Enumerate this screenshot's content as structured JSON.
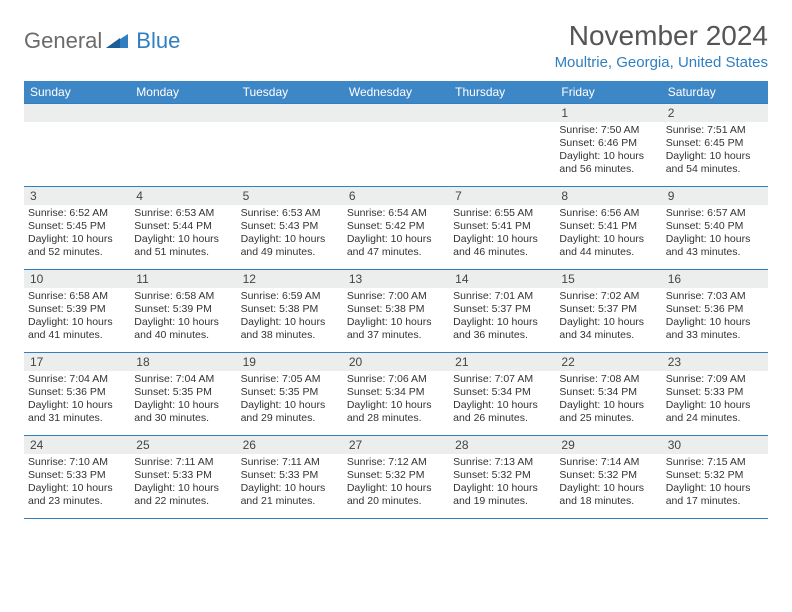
{
  "logo": {
    "general": "General",
    "blue": "Blue"
  },
  "title": "November 2024",
  "location": "Moultrie, Georgia, United States",
  "colors": {
    "header_bg": "#3d87c7",
    "accent": "#2f7fc1",
    "daynum_bg": "#eceded",
    "title_color": "#555555",
    "text": "#333333"
  },
  "day_headers": [
    "Sunday",
    "Monday",
    "Tuesday",
    "Wednesday",
    "Thursday",
    "Friday",
    "Saturday"
  ],
  "weeks": [
    [
      {
        "n": "",
        "sr": "",
        "ss": "",
        "d1": "",
        "d2": ""
      },
      {
        "n": "",
        "sr": "",
        "ss": "",
        "d1": "",
        "d2": ""
      },
      {
        "n": "",
        "sr": "",
        "ss": "",
        "d1": "",
        "d2": ""
      },
      {
        "n": "",
        "sr": "",
        "ss": "",
        "d1": "",
        "d2": ""
      },
      {
        "n": "",
        "sr": "",
        "ss": "",
        "d1": "",
        "d2": ""
      },
      {
        "n": "1",
        "sr": "Sunrise: 7:50 AM",
        "ss": "Sunset: 6:46 PM",
        "d1": "Daylight: 10 hours",
        "d2": "and 56 minutes."
      },
      {
        "n": "2",
        "sr": "Sunrise: 7:51 AM",
        "ss": "Sunset: 6:45 PM",
        "d1": "Daylight: 10 hours",
        "d2": "and 54 minutes."
      }
    ],
    [
      {
        "n": "3",
        "sr": "Sunrise: 6:52 AM",
        "ss": "Sunset: 5:45 PM",
        "d1": "Daylight: 10 hours",
        "d2": "and 52 minutes."
      },
      {
        "n": "4",
        "sr": "Sunrise: 6:53 AM",
        "ss": "Sunset: 5:44 PM",
        "d1": "Daylight: 10 hours",
        "d2": "and 51 minutes."
      },
      {
        "n": "5",
        "sr": "Sunrise: 6:53 AM",
        "ss": "Sunset: 5:43 PM",
        "d1": "Daylight: 10 hours",
        "d2": "and 49 minutes."
      },
      {
        "n": "6",
        "sr": "Sunrise: 6:54 AM",
        "ss": "Sunset: 5:42 PM",
        "d1": "Daylight: 10 hours",
        "d2": "and 47 minutes."
      },
      {
        "n": "7",
        "sr": "Sunrise: 6:55 AM",
        "ss": "Sunset: 5:41 PM",
        "d1": "Daylight: 10 hours",
        "d2": "and 46 minutes."
      },
      {
        "n": "8",
        "sr": "Sunrise: 6:56 AM",
        "ss": "Sunset: 5:41 PM",
        "d1": "Daylight: 10 hours",
        "d2": "and 44 minutes."
      },
      {
        "n": "9",
        "sr": "Sunrise: 6:57 AM",
        "ss": "Sunset: 5:40 PM",
        "d1": "Daylight: 10 hours",
        "d2": "and 43 minutes."
      }
    ],
    [
      {
        "n": "10",
        "sr": "Sunrise: 6:58 AM",
        "ss": "Sunset: 5:39 PM",
        "d1": "Daylight: 10 hours",
        "d2": "and 41 minutes."
      },
      {
        "n": "11",
        "sr": "Sunrise: 6:58 AM",
        "ss": "Sunset: 5:39 PM",
        "d1": "Daylight: 10 hours",
        "d2": "and 40 minutes."
      },
      {
        "n": "12",
        "sr": "Sunrise: 6:59 AM",
        "ss": "Sunset: 5:38 PM",
        "d1": "Daylight: 10 hours",
        "d2": "and 38 minutes."
      },
      {
        "n": "13",
        "sr": "Sunrise: 7:00 AM",
        "ss": "Sunset: 5:38 PM",
        "d1": "Daylight: 10 hours",
        "d2": "and 37 minutes."
      },
      {
        "n": "14",
        "sr": "Sunrise: 7:01 AM",
        "ss": "Sunset: 5:37 PM",
        "d1": "Daylight: 10 hours",
        "d2": "and 36 minutes."
      },
      {
        "n": "15",
        "sr": "Sunrise: 7:02 AM",
        "ss": "Sunset: 5:37 PM",
        "d1": "Daylight: 10 hours",
        "d2": "and 34 minutes."
      },
      {
        "n": "16",
        "sr": "Sunrise: 7:03 AM",
        "ss": "Sunset: 5:36 PM",
        "d1": "Daylight: 10 hours",
        "d2": "and 33 minutes."
      }
    ],
    [
      {
        "n": "17",
        "sr": "Sunrise: 7:04 AM",
        "ss": "Sunset: 5:36 PM",
        "d1": "Daylight: 10 hours",
        "d2": "and 31 minutes."
      },
      {
        "n": "18",
        "sr": "Sunrise: 7:04 AM",
        "ss": "Sunset: 5:35 PM",
        "d1": "Daylight: 10 hours",
        "d2": "and 30 minutes."
      },
      {
        "n": "19",
        "sr": "Sunrise: 7:05 AM",
        "ss": "Sunset: 5:35 PM",
        "d1": "Daylight: 10 hours",
        "d2": "and 29 minutes."
      },
      {
        "n": "20",
        "sr": "Sunrise: 7:06 AM",
        "ss": "Sunset: 5:34 PM",
        "d1": "Daylight: 10 hours",
        "d2": "and 28 minutes."
      },
      {
        "n": "21",
        "sr": "Sunrise: 7:07 AM",
        "ss": "Sunset: 5:34 PM",
        "d1": "Daylight: 10 hours",
        "d2": "and 26 minutes."
      },
      {
        "n": "22",
        "sr": "Sunrise: 7:08 AM",
        "ss": "Sunset: 5:34 PM",
        "d1": "Daylight: 10 hours",
        "d2": "and 25 minutes."
      },
      {
        "n": "23",
        "sr": "Sunrise: 7:09 AM",
        "ss": "Sunset: 5:33 PM",
        "d1": "Daylight: 10 hours",
        "d2": "and 24 minutes."
      }
    ],
    [
      {
        "n": "24",
        "sr": "Sunrise: 7:10 AM",
        "ss": "Sunset: 5:33 PM",
        "d1": "Daylight: 10 hours",
        "d2": "and 23 minutes."
      },
      {
        "n": "25",
        "sr": "Sunrise: 7:11 AM",
        "ss": "Sunset: 5:33 PM",
        "d1": "Daylight: 10 hours",
        "d2": "and 22 minutes."
      },
      {
        "n": "26",
        "sr": "Sunrise: 7:11 AM",
        "ss": "Sunset: 5:33 PM",
        "d1": "Daylight: 10 hours",
        "d2": "and 21 minutes."
      },
      {
        "n": "27",
        "sr": "Sunrise: 7:12 AM",
        "ss": "Sunset: 5:32 PM",
        "d1": "Daylight: 10 hours",
        "d2": "and 20 minutes."
      },
      {
        "n": "28",
        "sr": "Sunrise: 7:13 AM",
        "ss": "Sunset: 5:32 PM",
        "d1": "Daylight: 10 hours",
        "d2": "and 19 minutes."
      },
      {
        "n": "29",
        "sr": "Sunrise: 7:14 AM",
        "ss": "Sunset: 5:32 PM",
        "d1": "Daylight: 10 hours",
        "d2": "and 18 minutes."
      },
      {
        "n": "30",
        "sr": "Sunrise: 7:15 AM",
        "ss": "Sunset: 5:32 PM",
        "d1": "Daylight: 10 hours",
        "d2": "and 17 minutes."
      }
    ]
  ]
}
